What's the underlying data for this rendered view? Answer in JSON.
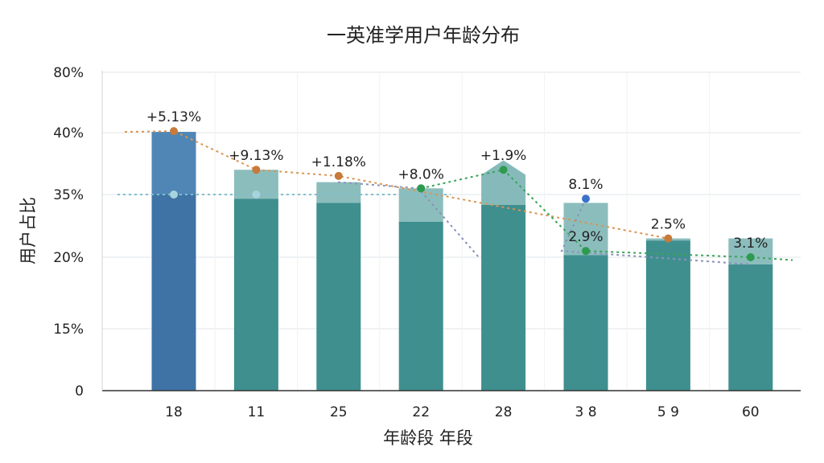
{
  "chart_data": {
    "type": "bar",
    "title": "一英准学用户年龄分布",
    "xlabel": "年龄段 年段",
    "ylabel": "用户占比",
    "y_ticks": [
      "0",
      "15%",
      "20%",
      "35%",
      "40%",
      "80%"
    ],
    "categories": [
      "18",
      "11",
      "25",
      "22",
      "28",
      "3 8",
      "5 9",
      "60"
    ],
    "series": [
      {
        "values": [
          35.0,
          34.0,
          33.0,
          28.5,
          32.5,
          20.5,
          24.0,
          19.5
        ]
      },
      {
        "values": [
          40.5,
          37.0,
          36.0,
          35.5,
          37.5,
          33.0,
          24.5,
          24.5
        ]
      }
    ],
    "line_markers": [
      {
        "category": "18",
        "value": 41.0,
        "label": "+5.13%",
        "color": "#c87a3a"
      },
      {
        "category": "11",
        "value": 37.0,
        "label": "+9.13%",
        "color": "#c87a3a"
      },
      {
        "category": "25",
        "value": 36.5,
        "label": "+1.18%",
        "color": "#c87a3a"
      },
      {
        "category": "22",
        "value": 35.5,
        "label": "+8.0%",
        "color": "#2e9a4f"
      },
      {
        "category": "28",
        "value": 37.0,
        "label": "+1.9%",
        "color": "#2e9a4f"
      },
      {
        "category": "3 8",
        "value": 34.0,
        "label": "8.1%",
        "color": "#3a72c8"
      },
      {
        "category": "3 8",
        "value": 21.5,
        "label": "2.9%",
        "color": "#2e9a4f"
      },
      {
        "category": "5 9",
        "value": 24.5,
        "label": "2.5%",
        "color": "#c87a3a"
      },
      {
        "category": "60",
        "value": 20.0,
        "label": "3.1%",
        "color": "#2e9a4f"
      }
    ],
    "reference_line": 35.0,
    "grid": true,
    "legend": "none",
    "colors": {
      "first_bar": "#3f73a6",
      "bar": "#3f8f8f",
      "bar_top": "#7fb6b6",
      "grid": "#e2e6e8",
      "reference": "#7fc0cc"
    }
  }
}
